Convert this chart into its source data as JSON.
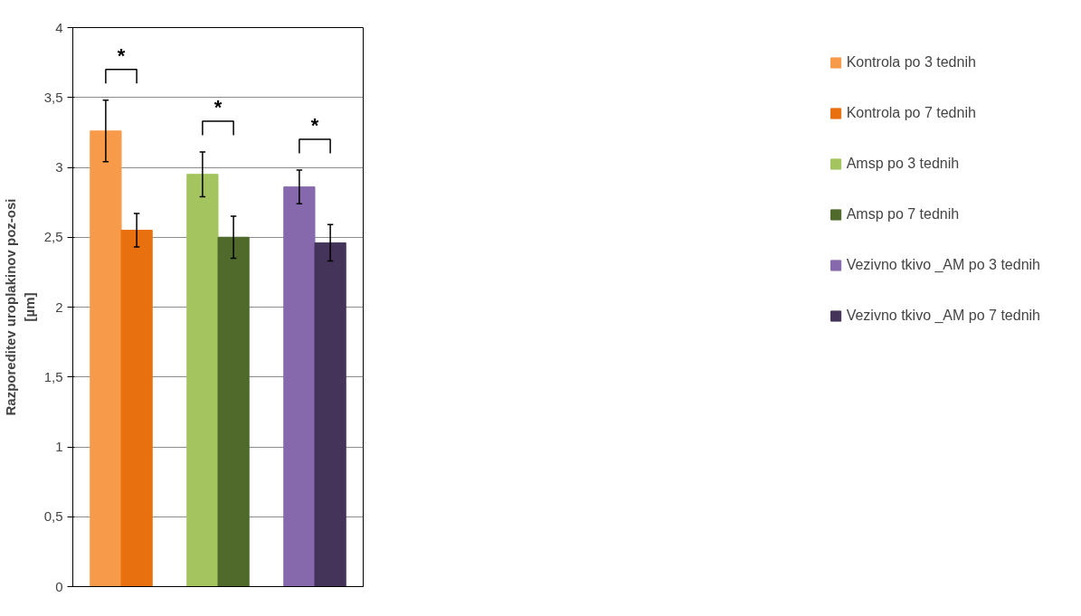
{
  "chart_data": {
    "type": "bar",
    "ylabel": "Razporeditev uroplakinov poz-osi [µm]",
    "categories": [
      null,
      null,
      null
    ],
    "series": [
      {
        "name": "Kontrola po 3 tednih",
        "color": "#f79a4a",
        "values": [
          3.26,
          null,
          null
        ],
        "errors": [
          0.22,
          null,
          null
        ]
      },
      {
        "name": "Kontrola po 7 tednih",
        "color": "#e8700f",
        "values": [
          2.55,
          null,
          null
        ],
        "errors": [
          0.12,
          null,
          null
        ]
      },
      {
        "name": "Amsp po 3 tednih",
        "color": "#a3c45e",
        "values": [
          null,
          2.95,
          null
        ],
        "errors": [
          null,
          0.16,
          null
        ]
      },
      {
        "name": "Amsp po 7 tednih",
        "color": "#4f6a2a",
        "values": [
          null,
          2.5,
          null
        ],
        "errors": [
          null,
          0.15,
          null
        ]
      },
      {
        "name": "Vezivno tkivo _AM po 3 tednih",
        "color": "#8668ad",
        "values": [
          null,
          null,
          2.86
        ],
        "errors": [
          null,
          null,
          0.12
        ]
      },
      {
        "name": "Vezivno tkivo _AM po 7 tednih",
        "color": "#44345a",
        "values": [
          null,
          null,
          2.46
        ],
        "errors": [
          null,
          null,
          0.13
        ]
      }
    ],
    "ylim": [
      0,
      4
    ],
    "yticks": [
      0,
      {
        "value": 0.5,
        "label": "0,5"
      },
      1,
      {
        "value": 1.5,
        "label": "1,5"
      },
      2,
      {
        "value": 2.5,
        "label": "2,5"
      },
      3,
      {
        "value": 3.5,
        "label": "3,5"
      },
      4
    ],
    "grid": "y",
    "legend": "right",
    "tick_labels": "y",
    "annotations": [
      "*",
      "*",
      "*"
    ]
  }
}
